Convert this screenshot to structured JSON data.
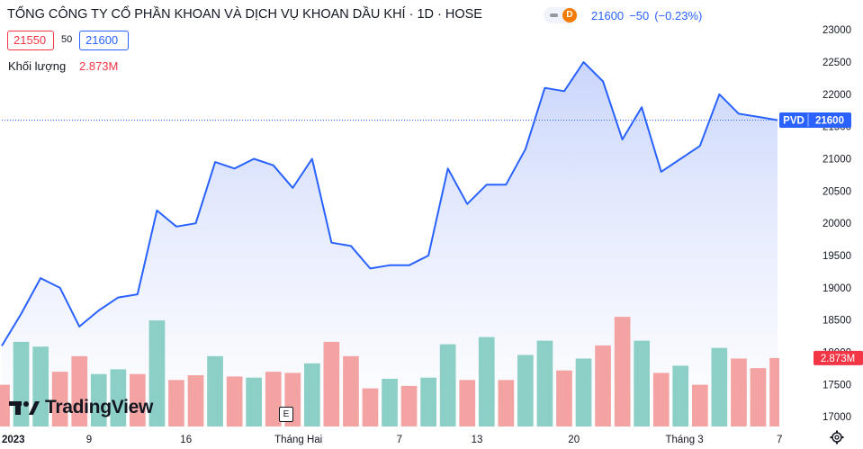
{
  "header": {
    "title": "TỔNG CÔNG TY CỔ PHẦN KHOAN VÀ DỊCH VỤ KHOAN DẦU KHÍ · 1D · HOSE",
    "status_badge": "D",
    "last_price": "21600",
    "change": "−50",
    "change_pct": "(−0.23%)"
  },
  "quote_boxes": {
    "bid": "21550",
    "spread": "50",
    "ask": "21600"
  },
  "volume": {
    "label": "Khối lượng",
    "value": "2.873M"
  },
  "price_tag": {
    "symbol": "PVD",
    "price": "21600"
  },
  "watermark": {
    "brand": "TradingView"
  },
  "event_marker": "E",
  "colors": {
    "line": "#2962ff",
    "area_top": "#c7d3fb",
    "area_bottom": "#ffffff",
    "vol_up": "#8ccfc7",
    "vol_down": "#f4a3a3",
    "price_label_bg": "#2962ff",
    "volume_label_bg": "#f23645"
  },
  "chart_data": {
    "type": "area",
    "symbol": "PVD",
    "title": "TỔNG CÔNG TY CỔ PHẦN KHOAN VÀ DỊCH VỤ KHOAN DẦU KHÍ · 1D · HOSE",
    "y_axis": {
      "ticks": [
        17000,
        17500,
        18000,
        18500,
        19000,
        19500,
        20000,
        20500,
        21000,
        21500,
        22000,
        22500,
        23000
      ],
      "range": [
        16850,
        23100
      ],
      "position": "right"
    },
    "x_axis": {
      "ticks": [
        {
          "label": "2023",
          "index": 0
        },
        {
          "label": "9",
          "index": 4.5
        },
        {
          "label": "16",
          "index": 9.5
        },
        {
          "label": "Tháng Hai",
          "index": 15.3
        },
        {
          "label": "7",
          "index": 20.5
        },
        {
          "label": "13",
          "index": 24.5
        },
        {
          "label": "20",
          "index": 29.5
        },
        {
          "label": "Tháng 3",
          "index": 35.2
        },
        {
          "label": "7",
          "index": 40.1
        }
      ]
    },
    "close": [
      18100,
      18600,
      19150,
      19000,
      18400,
      18650,
      18850,
      18900,
      20200,
      19950,
      20000,
      20950,
      20850,
      21000,
      20900,
      20550,
      21000,
      19700,
      19650,
      19300,
      19350,
      19350,
      19500,
      20850,
      20300,
      20600,
      20600,
      21150,
      22100,
      22050,
      22500,
      22200,
      21300,
      21800,
      20800,
      21000,
      21200,
      22000,
      21700,
      21650,
      21600
    ],
    "volume": [
      {
        "v": 1.75,
        "dir": "down"
      },
      {
        "v": 3.55,
        "dir": "up"
      },
      {
        "v": 3.35,
        "dir": "up"
      },
      {
        "v": 2.3,
        "dir": "down"
      },
      {
        "v": 2.95,
        "dir": "down"
      },
      {
        "v": 2.2,
        "dir": "up"
      },
      {
        "v": 2.4,
        "dir": "up"
      },
      {
        "v": 2.2,
        "dir": "down"
      },
      {
        "v": 4.45,
        "dir": "up"
      },
      {
        "v": 1.95,
        "dir": "down"
      },
      {
        "v": 2.15,
        "dir": "down"
      },
      {
        "v": 2.95,
        "dir": "up"
      },
      {
        "v": 2.1,
        "dir": "down"
      },
      {
        "v": 2.05,
        "dir": "up"
      },
      {
        "v": 2.3,
        "dir": "down"
      },
      {
        "v": 2.25,
        "dir": "down"
      },
      {
        "v": 2.65,
        "dir": "up"
      },
      {
        "v": 3.55,
        "dir": "down"
      },
      {
        "v": 2.95,
        "dir": "down"
      },
      {
        "v": 1.6,
        "dir": "down"
      },
      {
        "v": 2.0,
        "dir": "up"
      },
      {
        "v": 1.7,
        "dir": "down"
      },
      {
        "v": 2.05,
        "dir": "up"
      },
      {
        "v": 3.45,
        "dir": "up"
      },
      {
        "v": 1.95,
        "dir": "down"
      },
      {
        "v": 3.75,
        "dir": "up"
      },
      {
        "v": 1.95,
        "dir": "down"
      },
      {
        "v": 3.0,
        "dir": "up"
      },
      {
        "v": 3.6,
        "dir": "up"
      },
      {
        "v": 2.35,
        "dir": "down"
      },
      {
        "v": 2.85,
        "dir": "up"
      },
      {
        "v": 3.4,
        "dir": "down"
      },
      {
        "v": 4.6,
        "dir": "down"
      },
      {
        "v": 3.6,
        "dir": "up"
      },
      {
        "v": 2.25,
        "dir": "down"
      },
      {
        "v": 2.55,
        "dir": "up"
      },
      {
        "v": 1.75,
        "dir": "down"
      },
      {
        "v": 3.3,
        "dir": "up"
      },
      {
        "v": 2.85,
        "dir": "down"
      },
      {
        "v": 2.45,
        "dir": "down"
      },
      {
        "v": 2.873,
        "dir": "down"
      }
    ],
    "volume_unit": "M",
    "last_price": 21600,
    "grid": false,
    "legend": "top-left"
  }
}
